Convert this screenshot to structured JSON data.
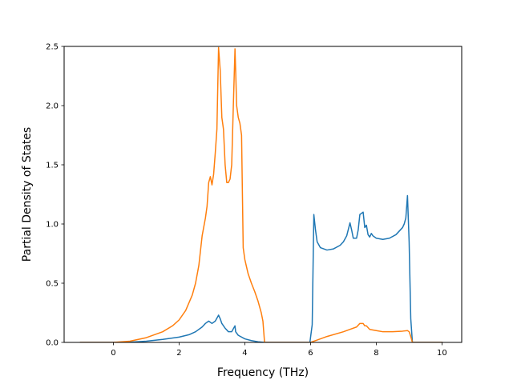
{
  "chart_data": {
    "type": "line",
    "xlabel": "Frequency (THz)",
    "ylabel": "Partial Density of States",
    "xlim": [
      -1.5,
      10.6
    ],
    "ylim": [
      0,
      2.5
    ],
    "xticks": [
      0,
      2,
      4,
      6,
      8,
      10
    ],
    "yticks": [
      0.0,
      0.5,
      1.0,
      1.5,
      2.0,
      2.5
    ],
    "xtick_labels": [
      "0",
      "2",
      "4",
      "6",
      "8",
      "10"
    ],
    "ytick_labels": [
      "0.0",
      "0.5",
      "1.0",
      "1.5",
      "2.0",
      "2.5"
    ],
    "grid": false,
    "series": [
      {
        "color": "#1f77b4",
        "x": [
          -1.0,
          0.0,
          0.5,
          1.0,
          1.5,
          2.0,
          2.3,
          2.5,
          2.7,
          2.8,
          2.9,
          3.0,
          3.1,
          3.2,
          3.25,
          3.3,
          3.4,
          3.5,
          3.6,
          3.7,
          3.72,
          3.8,
          4.0,
          4.2,
          4.4,
          4.6,
          4.8,
          5.0,
          5.5,
          5.98,
          6.05,
          6.1,
          6.15,
          6.2,
          6.3,
          6.5,
          6.7,
          6.9,
          7.0,
          7.1,
          7.2,
          7.25,
          7.3,
          7.4,
          7.45,
          7.5,
          7.6,
          7.65,
          7.7,
          7.75,
          7.8,
          7.85,
          7.9,
          8.0,
          8.2,
          8.4,
          8.6,
          8.8,
          8.85,
          8.9,
          8.95,
          9.0,
          9.05,
          9.1,
          9.15,
          9.2,
          9.5,
          10.0
        ],
        "y": [
          0.0,
          0.0,
          0.002,
          0.01,
          0.025,
          0.045,
          0.065,
          0.09,
          0.13,
          0.16,
          0.18,
          0.16,
          0.18,
          0.23,
          0.2,
          0.16,
          0.12,
          0.09,
          0.09,
          0.14,
          0.09,
          0.06,
          0.03,
          0.015,
          0.005,
          0.0,
          0.0,
          0.0,
          0.0,
          0.0,
          0.15,
          1.08,
          0.95,
          0.85,
          0.8,
          0.78,
          0.79,
          0.82,
          0.85,
          0.9,
          1.01,
          0.95,
          0.88,
          0.88,
          0.95,
          1.08,
          1.1,
          0.97,
          0.99,
          0.91,
          0.89,
          0.92,
          0.9,
          0.88,
          0.87,
          0.88,
          0.91,
          0.97,
          1.0,
          1.05,
          1.24,
          0.85,
          0.2,
          0.0,
          0.0,
          0.0,
          0.0,
          0.0
        ]
      },
      {
        "color": "#ff7f0e",
        "x": [
          -1.0,
          0.0,
          0.5,
          1.0,
          1.5,
          1.8,
          2.0,
          2.2,
          2.4,
          2.5,
          2.6,
          2.7,
          2.8,
          2.85,
          2.9,
          2.95,
          3.0,
          3.05,
          3.1,
          3.15,
          3.2,
          3.25,
          3.3,
          3.35,
          3.4,
          3.45,
          3.5,
          3.55,
          3.6,
          3.65,
          3.7,
          3.72,
          3.75,
          3.8,
          3.85,
          3.9,
          3.95,
          4.0,
          4.1,
          4.2,
          4.3,
          4.4,
          4.5,
          4.55,
          4.6,
          5.0,
          6.0,
          6.2,
          6.5,
          7.0,
          7.2,
          7.4,
          7.5,
          7.6,
          7.65,
          7.7,
          7.8,
          8.0,
          8.2,
          8.5,
          8.8,
          8.95,
          9.0,
          9.05,
          9.1,
          9.2,
          9.5,
          10.0
        ],
        "y": [
          0.0,
          0.0,
          0.01,
          0.04,
          0.09,
          0.14,
          0.19,
          0.27,
          0.4,
          0.5,
          0.65,
          0.9,
          1.05,
          1.15,
          1.35,
          1.4,
          1.33,
          1.42,
          1.6,
          1.8,
          2.49,
          2.3,
          1.9,
          1.8,
          1.5,
          1.35,
          1.35,
          1.38,
          1.5,
          2.0,
          2.48,
          2.3,
          2.0,
          1.9,
          1.85,
          1.75,
          0.8,
          0.7,
          0.58,
          0.5,
          0.43,
          0.35,
          0.25,
          0.18,
          0.0,
          0.0,
          0.0,
          0.02,
          0.05,
          0.09,
          0.11,
          0.13,
          0.16,
          0.16,
          0.14,
          0.14,
          0.11,
          0.1,
          0.09,
          0.09,
          0.095,
          0.1,
          0.09,
          0.05,
          0.0,
          0.0,
          0.0,
          0.0
        ]
      }
    ]
  }
}
